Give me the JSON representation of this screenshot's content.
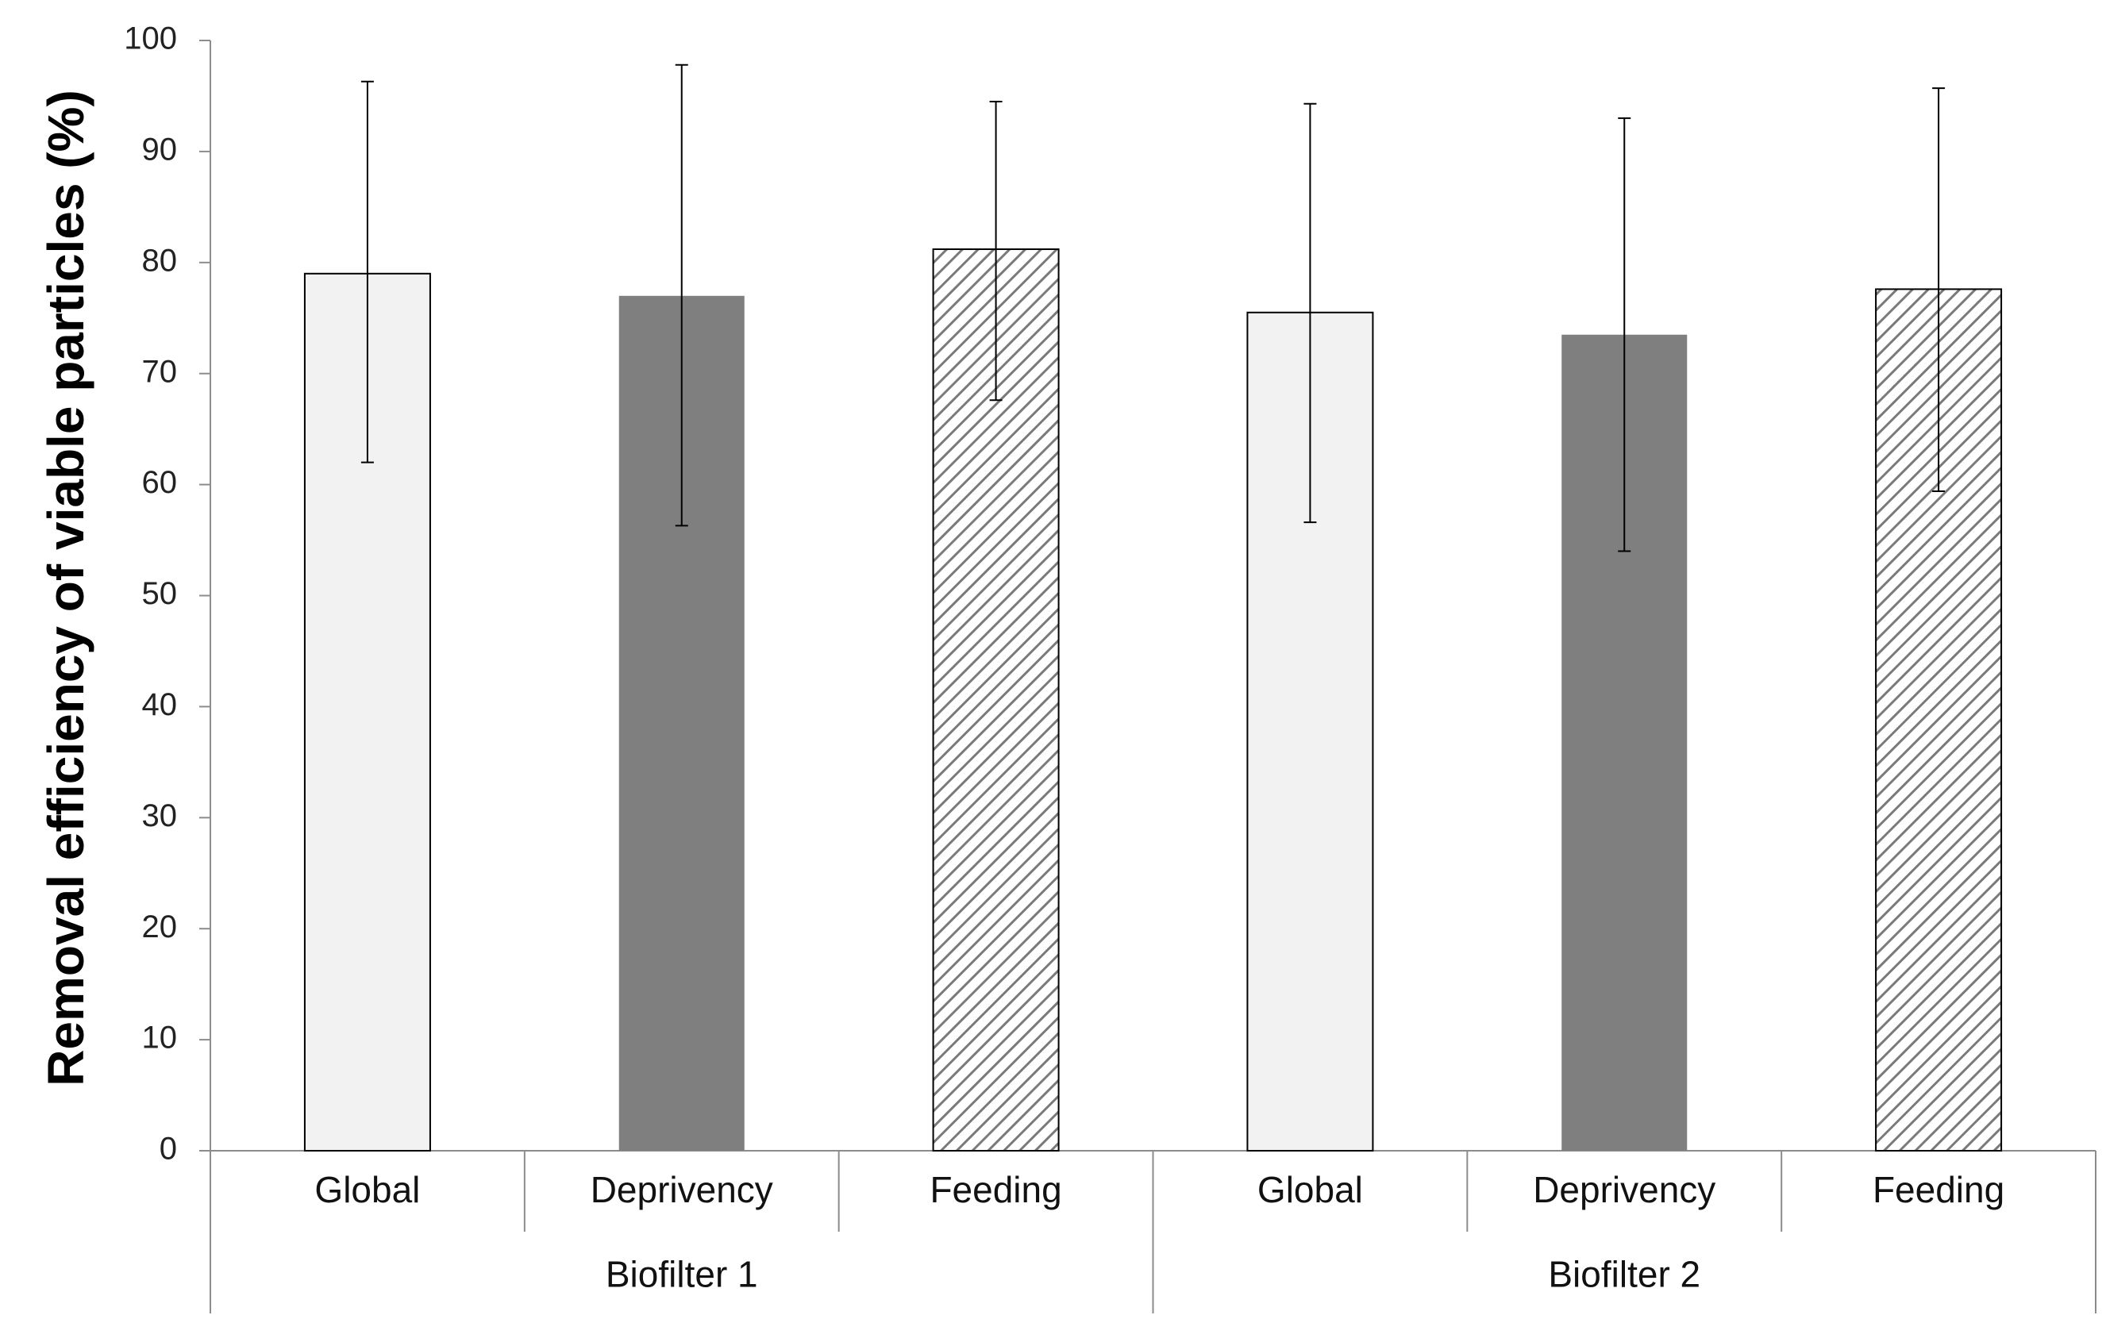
{
  "chart_data": {
    "type": "bar",
    "title": "",
    "xlabel": "",
    "ylabel": "Removal efficiency of viable particles (%)",
    "ylim": [
      0,
      100
    ],
    "yticks": [
      0,
      10,
      20,
      30,
      40,
      50,
      60,
      70,
      80,
      90,
      100
    ],
    "grid": false,
    "legend": "none",
    "groups": [
      {
        "label": "Biofilter 1",
        "bars": [
          {
            "category": "Global",
            "value": 79,
            "error_low": 62,
            "error_high": 96.3,
            "fill": "light"
          },
          {
            "category": "Deprivency",
            "value": 77,
            "error_low": 56.3,
            "error_high": 97.8,
            "fill": "dark"
          },
          {
            "category": "Feeding",
            "value": 81.2,
            "error_low": 67.6,
            "error_high": 94.5,
            "fill": "hatched"
          }
        ]
      },
      {
        "label": "Biofilter 2",
        "bars": [
          {
            "category": "Global",
            "value": 75.5,
            "error_low": 56.6,
            "error_high": 94.3,
            "fill": "light"
          },
          {
            "category": "Deprivency",
            "value": 73.5,
            "error_low": 54,
            "error_high": 93,
            "fill": "dark"
          },
          {
            "category": "Feeding",
            "value": 77.6,
            "error_low": 59.4,
            "error_high": 95.7,
            "fill": "hatched"
          }
        ]
      }
    ],
    "colors": {
      "light": "#f2f2f2",
      "dark": "#7f7f7f",
      "hatch_line": "#7a7a7a",
      "hatch_bg": "#ffffff",
      "outline": "#000000",
      "axis": "#8c8c8c"
    }
  }
}
